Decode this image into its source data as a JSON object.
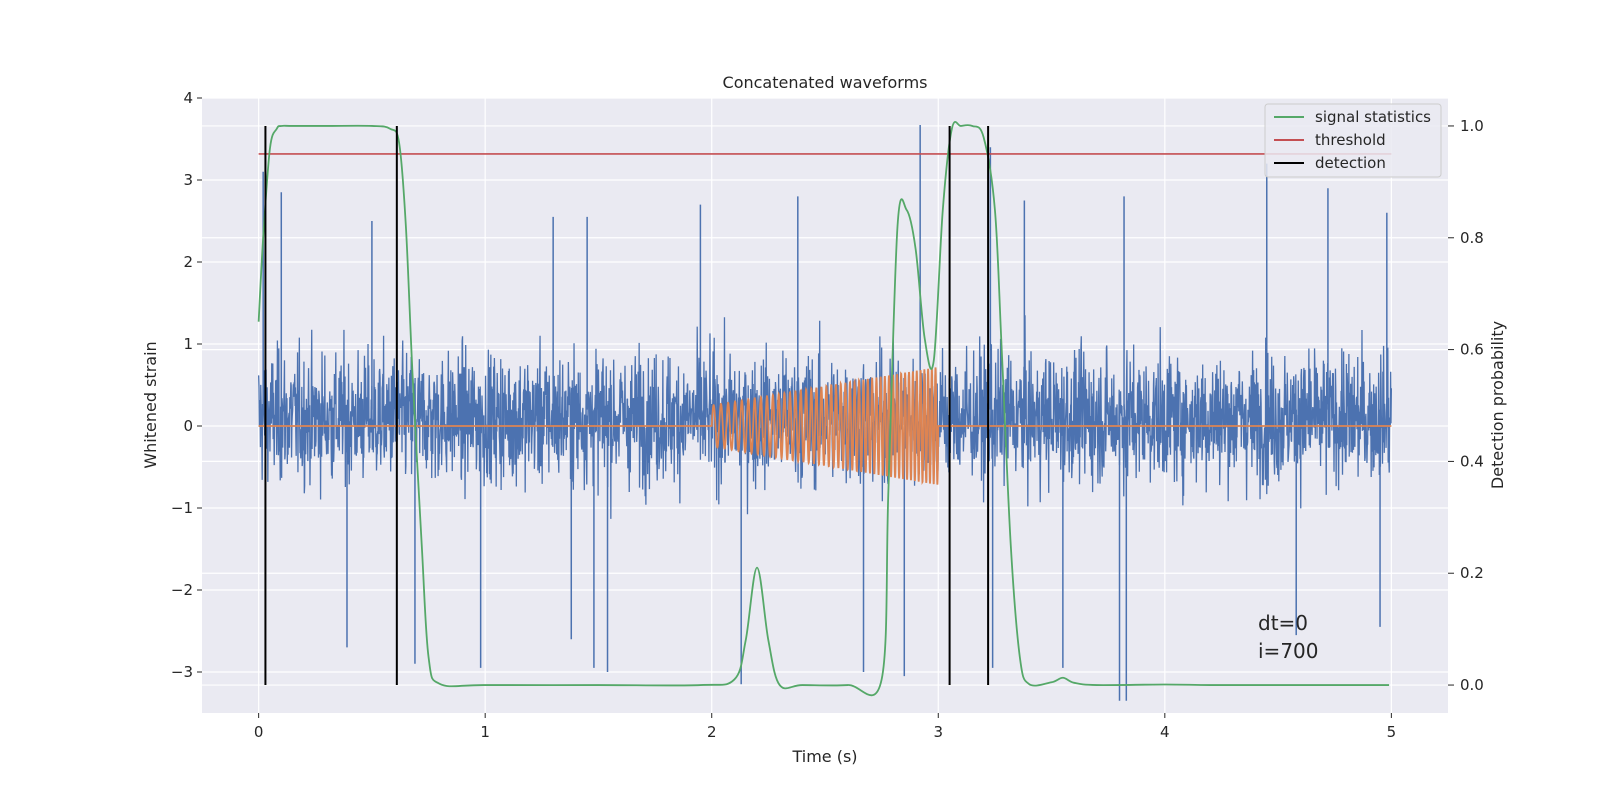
{
  "chart_data": {
    "type": "line",
    "title": "Concatenated waveforms",
    "xlabel": "Time (s)",
    "ylabel": "Whitened strain",
    "y2label": "Detection probability",
    "xlim": [
      -0.25,
      5.25
    ],
    "ylim": [
      -3.5,
      4.0
    ],
    "y2lim": [
      -0.05,
      1.05
    ],
    "x_ticks": [
      0,
      1,
      2,
      3,
      4,
      5
    ],
    "y_ticks": [
      -3,
      -2,
      -1,
      0,
      1,
      2,
      3,
      4
    ],
    "y2_ticks": [
      0.0,
      0.2,
      0.4,
      0.6,
      0.8,
      1.0
    ],
    "x_tick_labels": [
      "0",
      "1",
      "2",
      "3",
      "4",
      "5"
    ],
    "y_tick_labels": [
      "−3",
      "−2",
      "−1",
      "0",
      "1",
      "2",
      "3",
      "4"
    ],
    "y2_tick_labels": [
      "0.0",
      "0.2",
      "0.4",
      "0.6",
      "0.8",
      "1.0"
    ],
    "grid": true,
    "legend_position": "top-right",
    "legend": [
      {
        "label": "signal statistics",
        "color": "#55a868"
      },
      {
        "label": "threshold",
        "color": "#c44e52"
      },
      {
        "label": "detection",
        "color": "#000000"
      }
    ],
    "annotations": [
      "dt=0",
      "i=700"
    ],
    "series": [
      {
        "axis": "left",
        "color": "#4c72b0",
        "kind": "noise",
        "x_range": [
          0,
          5
        ],
        "typical_amplitude": [
          -1.6,
          2.3
        ],
        "peaks": [
          [
            0.02,
            3.1
          ],
          [
            0.1,
            2.85
          ],
          [
            0.5,
            2.5
          ],
          [
            1.3,
            2.55
          ],
          [
            1.45,
            2.55
          ],
          [
            1.95,
            2.7
          ],
          [
            2.38,
            2.8
          ],
          [
            2.92,
            3.67
          ],
          [
            3.23,
            3.4
          ],
          [
            3.38,
            2.75
          ],
          [
            3.82,
            2.8
          ],
          [
            4.45,
            3.2
          ],
          [
            4.72,
            2.9
          ],
          [
            4.98,
            2.6
          ]
        ],
        "troughs": [
          [
            0.39,
            -2.7
          ],
          [
            0.69,
            -2.9
          ],
          [
            0.98,
            -2.95
          ],
          [
            1.38,
            -2.6
          ],
          [
            1.48,
            -2.95
          ],
          [
            1.54,
            -3.0
          ],
          [
            2.13,
            -3.15
          ],
          [
            2.67,
            -3.0
          ],
          [
            2.85,
            -3.05
          ],
          [
            3.24,
            -2.95
          ],
          [
            3.55,
            -2.95
          ],
          [
            3.8,
            -3.35
          ],
          [
            3.83,
            -3.35
          ],
          [
            4.58,
            -2.55
          ],
          [
            4.95,
            -2.45
          ]
        ]
      },
      {
        "axis": "left",
        "color": "#dd8452",
        "kind": "chirp",
        "baseline": 0,
        "chirp_start_s": 2.0,
        "chirp_end_s": 3.0,
        "amplitude_start": 0.25,
        "amplitude_end": 0.72,
        "cycles": 46
      },
      {
        "name": "signal statistics",
        "axis": "right",
        "color": "#55a868",
        "x": [
          0,
          0.02,
          0.05,
          0.08,
          0.1,
          0.15,
          0.3,
          0.5,
          0.58,
          0.62,
          0.65,
          0.68,
          0.72,
          0.75,
          0.8,
          1.0,
          1.5,
          1.95,
          2.1,
          2.15,
          2.2,
          2.25,
          2.3,
          2.4,
          2.6,
          2.75,
          2.78,
          2.82,
          2.86,
          2.9,
          2.94,
          2.98,
          3.02,
          3.06,
          3.1,
          3.15,
          3.2,
          3.25,
          3.28,
          3.32,
          3.36,
          3.4,
          3.5,
          3.55,
          3.6,
          3.7,
          4.0,
          4.2,
          4.5,
          4.99
        ],
        "values": [
          0.65,
          0.8,
          0.96,
          0.995,
          1.0,
          1.0,
          1.0,
          1.0,
          0.995,
          0.97,
          0.82,
          0.55,
          0.25,
          0.05,
          0.002,
          0.0,
          0.0,
          0.0,
          0.01,
          0.08,
          0.21,
          0.08,
          0.0,
          0.0,
          0.0,
          0.01,
          0.35,
          0.82,
          0.85,
          0.78,
          0.62,
          0.58,
          0.85,
          0.995,
          1.0,
          1.0,
          0.98,
          0.85,
          0.6,
          0.25,
          0.05,
          0.002,
          0.005,
          0.013,
          0.004,
          0.0,
          0.001,
          0.0,
          0.0,
          0.0
        ]
      },
      {
        "name": "threshold",
        "axis": "right",
        "color": "#c44e52",
        "x": [
          0,
          5
        ],
        "values": [
          0.95,
          0.95
        ]
      }
    ],
    "detections": [
      0.03,
      0.61,
      3.05,
      3.22
    ]
  }
}
